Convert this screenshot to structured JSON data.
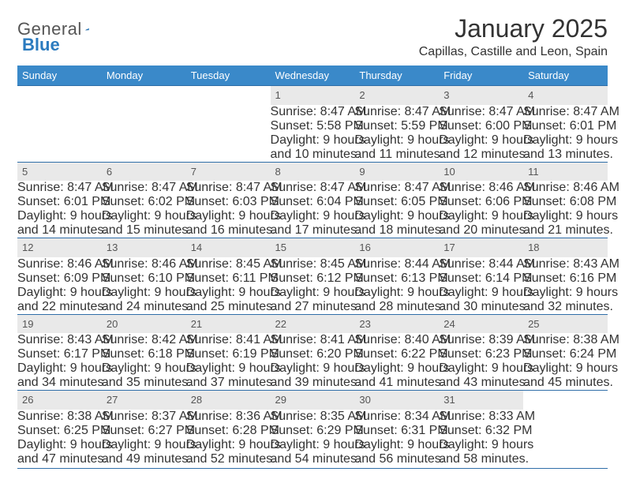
{
  "brand": {
    "part1": "General",
    "part2": "Blue"
  },
  "title": "January 2025",
  "location": "Capillas, Castille and Leon, Spain",
  "colors": {
    "header_bg": "#3a89c9",
    "header_text": "#ffffff",
    "rule": "#2f6ea8",
    "daynum_bg": "#e9e9e9",
    "text": "#333333",
    "logo_gray": "#555555",
    "logo_blue": "#2b7bbf"
  },
  "day_headers": [
    "Sunday",
    "Monday",
    "Tuesday",
    "Wednesday",
    "Thursday",
    "Friday",
    "Saturday"
  ],
  "weeks": [
    [
      {
        "blank": true
      },
      {
        "blank": true
      },
      {
        "blank": true
      },
      {
        "n": "1",
        "sunrise": "8:47 AM",
        "sunset": "5:58 PM",
        "dl1": "Daylight: 9 hours",
        "dl2": "and 10 minutes."
      },
      {
        "n": "2",
        "sunrise": "8:47 AM",
        "sunset": "5:59 PM",
        "dl1": "Daylight: 9 hours",
        "dl2": "and 11 minutes."
      },
      {
        "n": "3",
        "sunrise": "8:47 AM",
        "sunset": "6:00 PM",
        "dl1": "Daylight: 9 hours",
        "dl2": "and 12 minutes."
      },
      {
        "n": "4",
        "sunrise": "8:47 AM",
        "sunset": "6:01 PM",
        "dl1": "Daylight: 9 hours",
        "dl2": "and 13 minutes."
      }
    ],
    [
      {
        "n": "5",
        "sunrise": "8:47 AM",
        "sunset": "6:01 PM",
        "dl1": "Daylight: 9 hours",
        "dl2": "and 14 minutes."
      },
      {
        "n": "6",
        "sunrise": "8:47 AM",
        "sunset": "6:02 PM",
        "dl1": "Daylight: 9 hours",
        "dl2": "and 15 minutes."
      },
      {
        "n": "7",
        "sunrise": "8:47 AM",
        "sunset": "6:03 PM",
        "dl1": "Daylight: 9 hours",
        "dl2": "and 16 minutes."
      },
      {
        "n": "8",
        "sunrise": "8:47 AM",
        "sunset": "6:04 PM",
        "dl1": "Daylight: 9 hours",
        "dl2": "and 17 minutes."
      },
      {
        "n": "9",
        "sunrise": "8:47 AM",
        "sunset": "6:05 PM",
        "dl1": "Daylight: 9 hours",
        "dl2": "and 18 minutes."
      },
      {
        "n": "10",
        "sunrise": "8:46 AM",
        "sunset": "6:06 PM",
        "dl1": "Daylight: 9 hours",
        "dl2": "and 20 minutes."
      },
      {
        "n": "11",
        "sunrise": "8:46 AM",
        "sunset": "6:08 PM",
        "dl1": "Daylight: 9 hours",
        "dl2": "and 21 minutes."
      }
    ],
    [
      {
        "n": "12",
        "sunrise": "8:46 AM",
        "sunset": "6:09 PM",
        "dl1": "Daylight: 9 hours",
        "dl2": "and 22 minutes."
      },
      {
        "n": "13",
        "sunrise": "8:46 AM",
        "sunset": "6:10 PM",
        "dl1": "Daylight: 9 hours",
        "dl2": "and 24 minutes."
      },
      {
        "n": "14",
        "sunrise": "8:45 AM",
        "sunset": "6:11 PM",
        "dl1": "Daylight: 9 hours",
        "dl2": "and 25 minutes."
      },
      {
        "n": "15",
        "sunrise": "8:45 AM",
        "sunset": "6:12 PM",
        "dl1": "Daylight: 9 hours",
        "dl2": "and 27 minutes."
      },
      {
        "n": "16",
        "sunrise": "8:44 AM",
        "sunset": "6:13 PM",
        "dl1": "Daylight: 9 hours",
        "dl2": "and 28 minutes."
      },
      {
        "n": "17",
        "sunrise": "8:44 AM",
        "sunset": "6:14 PM",
        "dl1": "Daylight: 9 hours",
        "dl2": "and 30 minutes."
      },
      {
        "n": "18",
        "sunrise": "8:43 AM",
        "sunset": "6:16 PM",
        "dl1": "Daylight: 9 hours",
        "dl2": "and 32 minutes."
      }
    ],
    [
      {
        "n": "19",
        "sunrise": "8:43 AM",
        "sunset": "6:17 PM",
        "dl1": "Daylight: 9 hours",
        "dl2": "and 34 minutes."
      },
      {
        "n": "20",
        "sunrise": "8:42 AM",
        "sunset": "6:18 PM",
        "dl1": "Daylight: 9 hours",
        "dl2": "and 35 minutes."
      },
      {
        "n": "21",
        "sunrise": "8:41 AM",
        "sunset": "6:19 PM",
        "dl1": "Daylight: 9 hours",
        "dl2": "and 37 minutes."
      },
      {
        "n": "22",
        "sunrise": "8:41 AM",
        "sunset": "6:20 PM",
        "dl1": "Daylight: 9 hours",
        "dl2": "and 39 minutes."
      },
      {
        "n": "23",
        "sunrise": "8:40 AM",
        "sunset": "6:22 PM",
        "dl1": "Daylight: 9 hours",
        "dl2": "and 41 minutes."
      },
      {
        "n": "24",
        "sunrise": "8:39 AM",
        "sunset": "6:23 PM",
        "dl1": "Daylight: 9 hours",
        "dl2": "and 43 minutes."
      },
      {
        "n": "25",
        "sunrise": "8:38 AM",
        "sunset": "6:24 PM",
        "dl1": "Daylight: 9 hours",
        "dl2": "and 45 minutes."
      }
    ],
    [
      {
        "n": "26",
        "sunrise": "8:38 AM",
        "sunset": "6:25 PM",
        "dl1": "Daylight: 9 hours",
        "dl2": "and 47 minutes."
      },
      {
        "n": "27",
        "sunrise": "8:37 AM",
        "sunset": "6:27 PM",
        "dl1": "Daylight: 9 hours",
        "dl2": "and 49 minutes."
      },
      {
        "n": "28",
        "sunrise": "8:36 AM",
        "sunset": "6:28 PM",
        "dl1": "Daylight: 9 hours",
        "dl2": "and 52 minutes."
      },
      {
        "n": "29",
        "sunrise": "8:35 AM",
        "sunset": "6:29 PM",
        "dl1": "Daylight: 9 hours",
        "dl2": "and 54 minutes."
      },
      {
        "n": "30",
        "sunrise": "8:34 AM",
        "sunset": "6:31 PM",
        "dl1": "Daylight: 9 hours",
        "dl2": "and 56 minutes."
      },
      {
        "n": "31",
        "sunrise": "8:33 AM",
        "sunset": "6:32 PM",
        "dl1": "Daylight: 9 hours",
        "dl2": "and 58 minutes."
      },
      {
        "blank": true
      }
    ]
  ],
  "labels": {
    "sunrise_prefix": "Sunrise: ",
    "sunset_prefix": "Sunset: "
  }
}
